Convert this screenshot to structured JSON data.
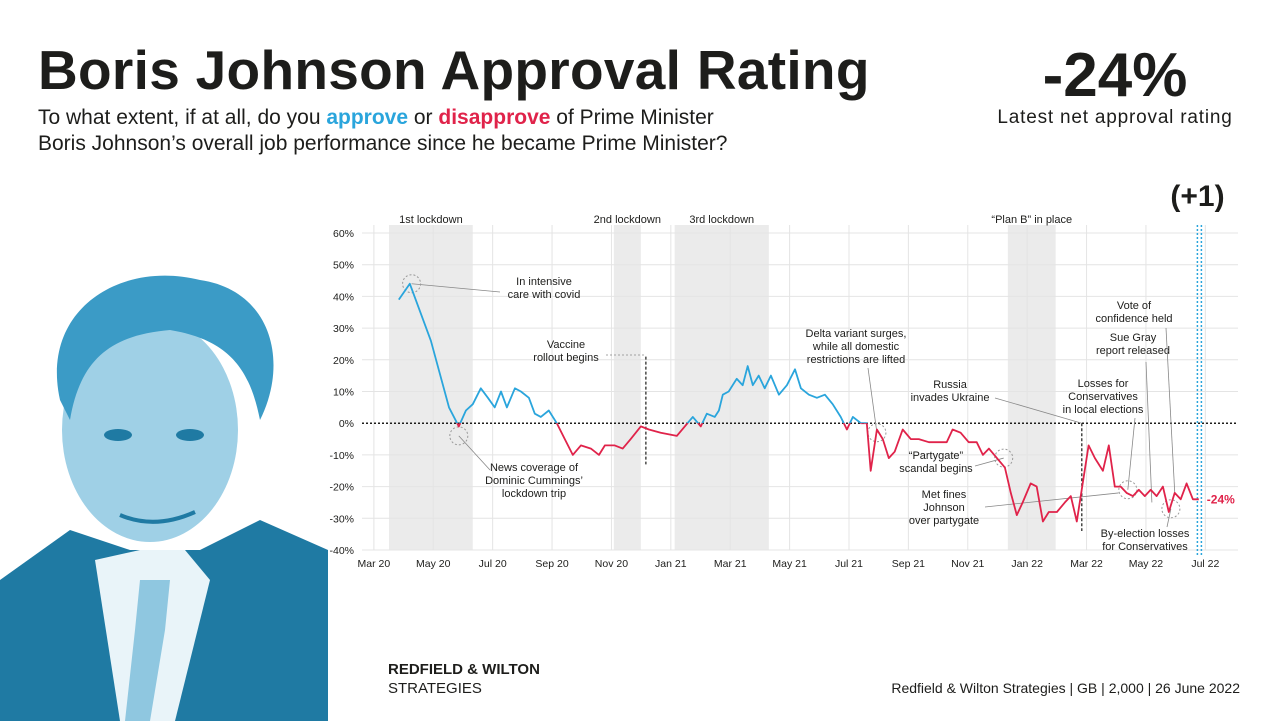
{
  "header": {
    "title": "Boris Johnson Approval Rating",
    "subtitle": [
      [
        "To what extent, if at all, do you ",
        "approve",
        " or ",
        "disapprove",
        " of Prime Minister"
      ],
      [
        "Boris Johnson’s overall job performance since he became Prime Minister?"
      ]
    ],
    "headline": "-24%",
    "headline_caption": "Latest net approval rating",
    "change": "(+1)"
  },
  "footer": {
    "brand": [
      "REDFIELD & WILTON",
      "STRATEGIES"
    ],
    "source": "Redfield & Wilton Strategies | GB | 2,000 | 26 June 2022"
  },
  "chart_data": {
    "type": "line",
    "xlim": [
      -0.4,
      29.1
    ],
    "ylim": [
      -40,
      60
    ],
    "xticks": [
      {
        "value": 0,
        "label": "Mar 20"
      },
      {
        "value": 2,
        "label": "May 20"
      },
      {
        "value": 4,
        "label": "Jul 20"
      },
      {
        "value": 6,
        "label": "Sep 20"
      },
      {
        "value": 8,
        "label": "Nov 20"
      },
      {
        "value": 10,
        "label": "Jan 21"
      },
      {
        "value": 12,
        "label": "Mar 21"
      },
      {
        "value": 14,
        "label": "May 21"
      },
      {
        "value": 16,
        "label": "Jul 21"
      },
      {
        "value": 18,
        "label": "Sep 21"
      },
      {
        "value": 20,
        "label": "Nov 21"
      },
      {
        "value": 22,
        "label": "Jan 22"
      },
      {
        "value": 24,
        "label": "Mar 22"
      },
      {
        "value": 26,
        "label": "May 22"
      },
      {
        "value": 28,
        "label": "Jul 22"
      }
    ],
    "yticks": [
      {
        "value": 60,
        "label": "60%"
      },
      {
        "value": 50,
        "label": "50%"
      },
      {
        "value": 40,
        "label": "40%"
      },
      {
        "value": 30,
        "label": "30%"
      },
      {
        "value": 20,
        "label": "20%"
      },
      {
        "value": 10,
        "label": "10%"
      },
      {
        "value": 0,
        "label": "0%"
      },
      {
        "value": -10,
        "label": "-10%"
      },
      {
        "value": -20,
        "label": "-20%"
      },
      {
        "value": -30,
        "label": "-30%"
      },
      {
        "value": -40,
        "label": "-40%"
      }
    ],
    "grid": true,
    "series": [
      {
        "name": "Net approval",
        "color": "#2aa5dc",
        "negative_color": "#e0234a",
        "x": [
          0.84,
          1.21,
          1.92,
          2.53,
          2.86,
          3.1,
          3.33,
          3.6,
          3.84,
          4.07,
          4.28,
          4.48,
          4.75,
          4.95,
          5.22,
          5.42,
          5.62,
          5.89,
          6.16,
          6.43,
          6.7,
          6.97,
          7.31,
          7.58,
          7.78,
          8.11,
          8.38,
          8.65,
          8.99,
          9.26,
          9.66,
          10.2,
          10.47,
          10.74,
          11.01,
          11.21,
          11.48,
          11.62,
          11.75,
          11.95,
          12.22,
          12.42,
          12.59,
          12.76,
          12.96,
          13.16,
          13.37,
          13.64,
          13.91,
          14.18,
          14.38,
          14.65,
          14.92,
          15.19,
          15.45,
          15.72,
          15.93,
          16.13,
          16.4,
          16.6,
          16.73,
          16.94,
          17.14,
          17.34,
          17.54,
          17.81,
          18.08,
          18.35,
          18.69,
          18.96,
          19.29,
          19.49,
          19.76,
          20.03,
          20.3,
          20.51,
          20.71,
          20.98,
          21.25,
          21.45,
          21.65,
          21.85,
          22.12,
          22.32,
          22.53,
          22.73,
          23.0,
          23.27,
          23.47,
          23.67,
          23.87,
          24.07,
          24.28,
          24.55,
          24.75,
          24.95,
          25.15,
          25.35,
          25.56,
          25.76,
          25.96,
          26.16,
          26.36,
          26.57,
          26.77,
          26.97,
          27.17,
          27.37,
          27.58,
          27.78
        ],
        "values": [
          39,
          44,
          26,
          5,
          -1,
          4,
          6,
          11,
          8,
          5,
          10,
          5,
          11,
          10,
          8,
          3,
          2,
          4,
          0,
          -5,
          -10,
          -7,
          -8,
          -10,
          -7,
          -7,
          -8,
          -5,
          -1,
          -2,
          -3,
          -4,
          -1,
          2,
          -1,
          3,
          2,
          4,
          9,
          10,
          14,
          12,
          18,
          12,
          15,
          11,
          15,
          9,
          12,
          17,
          11,
          9,
          8,
          9,
          6,
          2,
          -2,
          2,
          0,
          0,
          -15,
          -2,
          -5,
          -11,
          -9,
          -2,
          -5,
          -5,
          -6,
          -6,
          -6,
          -2,
          -3,
          -6,
          -6,
          -10,
          -8,
          -11,
          -14,
          -22,
          -29,
          -25,
          -19,
          -20,
          -31,
          -28,
          -28,
          -25,
          -23,
          -31,
          -19,
          -7,
          -11,
          -15,
          -7,
          -20,
          -20,
          -22,
          -23,
          -21,
          -23,
          -21,
          -23,
          -20,
          -28,
          -22,
          -24,
          -19,
          -24,
          -24
        ]
      }
    ],
    "end_label": "-24%",
    "latest_marker": {
      "x": 27.8,
      "color": "#2aa5dc"
    },
    "shaded_periods": [
      {
        "label": "1st lockdown",
        "start": 0.51,
        "end": 3.33
      },
      {
        "label": "2nd lockdown",
        "start": 8.08,
        "end": 8.99
      },
      {
        "label": "3rd lockdown",
        "start": 10.13,
        "end": 13.3
      },
      {
        "label": "“Plan B” in place",
        "start": 21.35,
        "end": 22.96
      }
    ],
    "annotations": [
      {
        "text": [
          "In intensive",
          "care with covid"
        ],
        "x": 1.27,
        "y": 44,
        "marker": "circle"
      },
      {
        "text": [
          "News coverage of",
          "Dominic Cummings’",
          "lockdown trip"
        ],
        "x": 2.86,
        "y": -4,
        "marker": "circle"
      },
      {
        "text": [
          "Vaccine",
          "rollout begins"
        ],
        "x": 9.16,
        "y": 21,
        "y_end": -13,
        "marker": "vline"
      },
      {
        "text": [
          "Delta variant surges,",
          "while all domestic",
          "restrictions are lifted"
        ],
        "x": 16.94,
        "y": -3,
        "marker": "circle"
      },
      {
        "text": [
          "Russia",
          "invades Ukraine"
        ],
        "x": 23.84,
        "y": 0,
        "y_end": -34,
        "marker": "vline"
      },
      {
        "text": [
          "“Partygate”",
          "scandal begins"
        ],
        "x": 21.21,
        "y": -11,
        "marker": "circle"
      },
      {
        "text": [
          "Met fines",
          "Johnson",
          "over partygate"
        ],
        "x": 25.08,
        "y": -22,
        "marker": "point"
      },
      {
        "text": [
          "Losses for",
          "Conservatives",
          "in local elections"
        ],
        "x": 25.39,
        "y": -21,
        "marker": "circle"
      },
      {
        "text": [
          "Sue Gray",
          "report released"
        ],
        "x": 26.2,
        "y": -25,
        "marker": "point"
      },
      {
        "text": [
          "Vote of",
          "confidence held"
        ],
        "x": 26.97,
        "y": -22,
        "marker": "point"
      },
      {
        "text": [
          "By-election losses",
          "for Conservatives"
        ],
        "x": 26.84,
        "y": -27,
        "marker": "circle"
      }
    ]
  }
}
